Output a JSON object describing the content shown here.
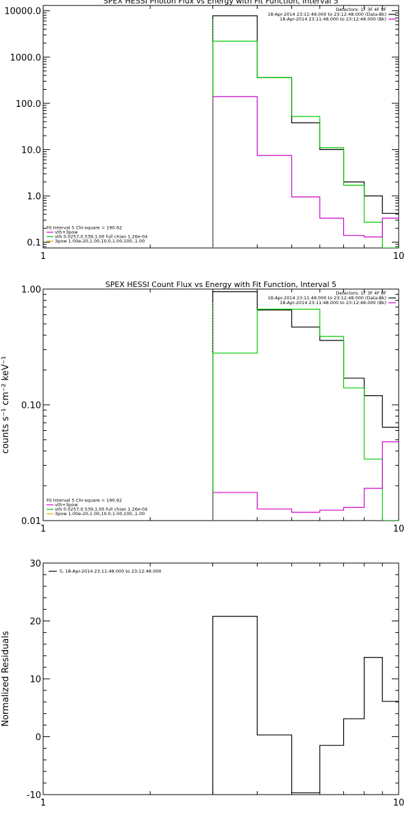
{
  "chart_data": [
    {
      "type": "line",
      "title": "SPEX HESSI Photon Flux vs Energy with Fit Function, Interval 5",
      "xlabel": "",
      "ylabel": "",
      "xscale": "log",
      "yscale": "log",
      "xlim": [
        1,
        10
      ],
      "ylim": [
        0.075,
        13000
      ],
      "x_ticks": [
        1,
        10
      ],
      "x_tick_labels": [
        "1",
        "10"
      ],
      "y_ticks": [
        0.1,
        1,
        10,
        100,
        1000,
        10000
      ],
      "y_tick_labels": [
        "0.1",
        "1.0",
        "10.0",
        "100.0",
        "1000.0",
        "10000.0"
      ],
      "bin_edges": [
        3,
        4,
        5,
        6,
        7,
        8,
        9,
        10
      ],
      "series": [
        {
          "color": "#000000",
          "values": [
            7800,
            360,
            38,
            10,
            2,
            1,
            0.42
          ]
        },
        {
          "color": "#00cc00",
          "values": [
            2200,
            360,
            52,
            11,
            1.7,
            0.27,
            0.0001
          ]
        },
        {
          "color": "#cc00cc",
          "values": [
            140,
            7.5,
            0.95,
            0.33,
            0.14,
            0.13,
            0.33
          ]
        }
      ],
      "legend_top": {
        "position": "top-right",
        "header": "Detectors: 1F 3F 4F 8F",
        "entries": [
          {
            "text": "18-Apr-2014 23:11:48.000 to 23:12:48.000 (Data-Bk)",
            "color": "#000000"
          },
          {
            "text": "18-Apr-2014 23:11:48.000 to 23:12:48.000 (Bk)",
            "color": "#cc00cc"
          }
        ]
      },
      "legend_bottom": {
        "position": "bottom-left",
        "header": "Fit Interval 5   Chi-square = 190.62",
        "entries": [
          {
            "text": "vth+3pow",
            "color": "#cc00cc"
          },
          {
            "text": "vth 0.0257,0.539,1.00   full chian  1.26e-04",
            "color": "#00cc00"
          },
          {
            "text": "3pow 1.00e-20,1.00,10.0,1.00,100.,1.00",
            "color": "#ccaa00"
          }
        ]
      }
    },
    {
      "type": "line",
      "title": "SPEX HESSI Count Flux vs Energy with Fit Function, Interval 5",
      "xlabel": "",
      "ylabel": "counts s⁻¹ cm⁻² keV⁻¹",
      "xscale": "log",
      "yscale": "log",
      "xlim": [
        1,
        10
      ],
      "ylim": [
        0.01,
        1
      ],
      "x_ticks": [
        1,
        10
      ],
      "x_tick_labels": [
        "1",
        "10"
      ],
      "y_ticks": [
        0.01,
        0.1,
        1
      ],
      "y_tick_labels": [
        "0.01",
        "0.10",
        "1.00"
      ],
      "bin_edges": [
        3,
        4,
        5,
        6,
        7,
        8,
        9,
        10
      ],
      "series": [
        {
          "color": "#000000",
          "values": [
            0.95,
            0.66,
            0.47,
            0.36,
            0.17,
            0.12,
            0.064
          ]
        },
        {
          "color": "#00cc00",
          "values": [
            0.28,
            0.67,
            0.67,
            0.39,
            0.14,
            0.034,
            0.0001
          ]
        },
        {
          "color": "#cc00cc",
          "values": [
            0.0175,
            0.0126,
            0.0118,
            0.0123,
            0.013,
            0.019,
            0.048
          ]
        }
      ],
      "legend_top": {
        "position": "top-right",
        "header": "Detectors: 1F 3F 4F 8F",
        "entries": [
          {
            "text": "18-Apr-2014 23:11:48.000 to 23:12:48.000 (Data-Bk)",
            "color": "#000000"
          },
          {
            "text": "18-Apr-2014 23:11:48.000 to 23:12:48.000 (Bk)",
            "color": "#cc00cc"
          }
        ]
      },
      "legend_bottom": {
        "position": "bottom-left",
        "header": "Fit Interval 5   Chi-square = 190.62",
        "entries": [
          {
            "text": "vth+3pow",
            "color": "#cc00cc"
          },
          {
            "text": "vth 0.0257,0.539,1.00   full chian  1.26e-04",
            "color": "#00cc00"
          },
          {
            "text": "3pow 1.00e-20,1.00,10.0,1.00,100.,1.00",
            "color": "#ccaa00"
          }
        ]
      }
    },
    {
      "type": "line",
      "title": "",
      "xlabel": "",
      "ylabel": "Normalized Residuals",
      "xscale": "log",
      "yscale": "linear",
      "xlim": [
        1,
        10
      ],
      "ylim": [
        -10,
        30
      ],
      "x_ticks": [
        1,
        10
      ],
      "x_tick_labels": [
        "1",
        "10"
      ],
      "y_ticks": [
        -10,
        0,
        10,
        20,
        30
      ],
      "y_tick_labels": [
        "-10",
        "0",
        "10",
        "20",
        "30"
      ],
      "bin_edges": [
        3,
        4,
        5,
        6,
        7,
        8,
        9,
        10
      ],
      "series": [
        {
          "color": "#000000",
          "values": [
            20.8,
            0.3,
            -9.7,
            -1.5,
            3.1,
            13.7,
            6.1
          ]
        }
      ],
      "legend_top": {
        "position": "top-left",
        "header": "",
        "entries": [
          {
            "text": "5, 18-Apr-2014 23:11:48.000 to 23:12:48.000",
            "color": "#000000"
          }
        ]
      }
    }
  ]
}
